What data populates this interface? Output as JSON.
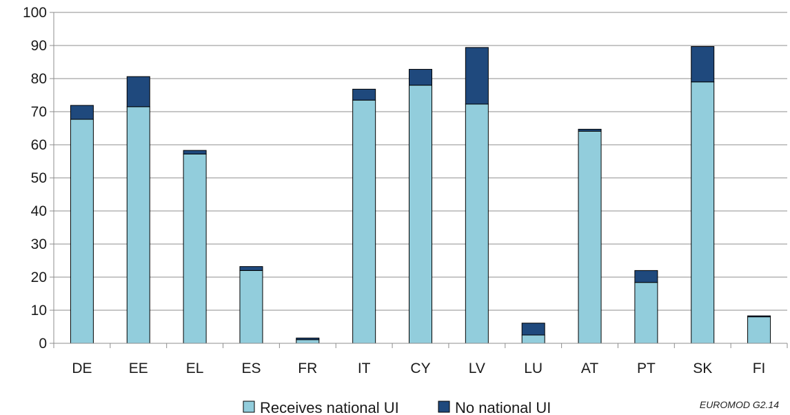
{
  "chart_data": {
    "type": "bar",
    "stacked": true,
    "categories": [
      "DE",
      "EE",
      "EL",
      "ES",
      "FR",
      "IT",
      "CY",
      "LV",
      "LU",
      "AT",
      "PT",
      "SK",
      "FI"
    ],
    "series": [
      {
        "name": "Receives national UI",
        "color": "#92cddc",
        "values": [
          67.7,
          71.5,
          57.2,
          22.0,
          1.1,
          73.5,
          78.0,
          72.3,
          2.5,
          64.1,
          18.4,
          79.0,
          8.0
        ]
      },
      {
        "name": "No national UI",
        "color": "#1f497d",
        "values": [
          4.2,
          9.1,
          1.1,
          1.2,
          0.5,
          3.3,
          4.8,
          17.1,
          3.6,
          0.6,
          3.6,
          10.7,
          0.3
        ]
      }
    ],
    "ylim": [
      0,
      100
    ],
    "yticks": [
      0,
      10,
      20,
      30,
      40,
      50,
      60,
      70,
      80,
      90,
      100
    ],
    "grid": true,
    "legend_position": "bottom",
    "xlabel": "",
    "ylabel": "",
    "title": ""
  },
  "credit": "EUROMOD G2.14"
}
